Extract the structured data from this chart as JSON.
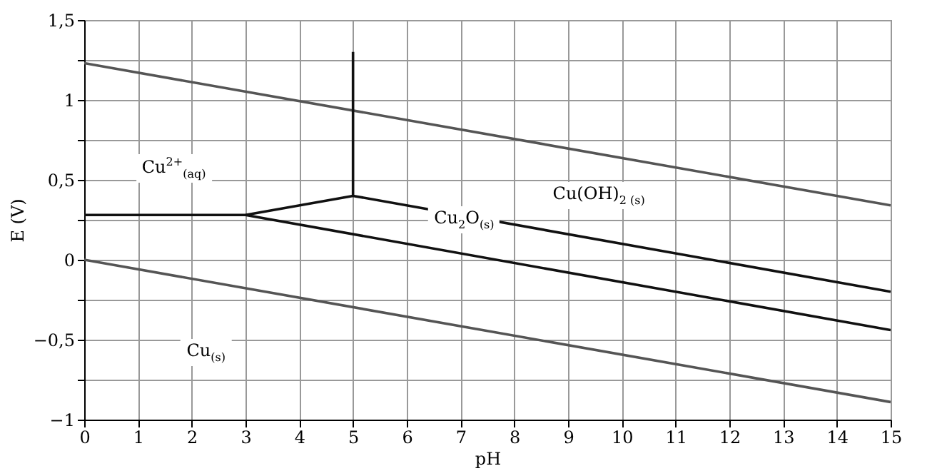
{
  "chart_data": {
    "type": "line",
    "xlabel": "pH",
    "ylabel": "E (V)",
    "xlim": [
      0,
      15
    ],
    "xticks": [
      0,
      1,
      2,
      3,
      4,
      5,
      6,
      7,
      8,
      9,
      10,
      11,
      12,
      13,
      14,
      15
    ],
    "ylim": [
      -1,
      1.5
    ],
    "yticks": [
      {
        "value": -1,
        "label": "−1"
      },
      {
        "value": -0.75,
        "label": null
      },
      {
        "value": -0.5,
        "label": "−0,5"
      },
      {
        "value": -0.25,
        "label": null
      },
      {
        "value": 0,
        "label": "0"
      },
      {
        "value": 0.25,
        "label": null
      },
      {
        "value": 0.5,
        "label": "0,5"
      },
      {
        "value": 0.75,
        "label": null
      },
      {
        "value": 1,
        "label": "1"
      },
      {
        "value": 1.25,
        "label": null
      },
      {
        "value": 1.5,
        "label": "1,5"
      }
    ],
    "grid": true,
    "legend": false,
    "series": [
      {
        "color": "#555555",
        "x": [
          0,
          15
        ],
        "values": [
          1.23,
          0.34
        ]
      },
      {
        "color": "#555555",
        "x": [
          0,
          15
        ],
        "values": [
          0,
          -0.89
        ]
      },
      {
        "color": "#111111",
        "x": [
          0,
          3,
          5,
          15
        ],
        "values": [
          0.28,
          0.28,
          0.4,
          -0.2
        ]
      },
      {
        "color": "#111111",
        "x": [
          5,
          5
        ],
        "values": [
          0.4,
          1.3
        ]
      },
      {
        "color": "#111111",
        "x": [
          3,
          15
        ],
        "values": [
          0.28,
          -0.44
        ]
      }
    ],
    "annotations": [
      "Cu$^{2+}$$_{(aq)}$",
      "Cu(OH)$_{2 (s)}$",
      "Cu$_{2}$O$_{(s)}$",
      "Cu$_{(s)}$"
    ]
  }
}
